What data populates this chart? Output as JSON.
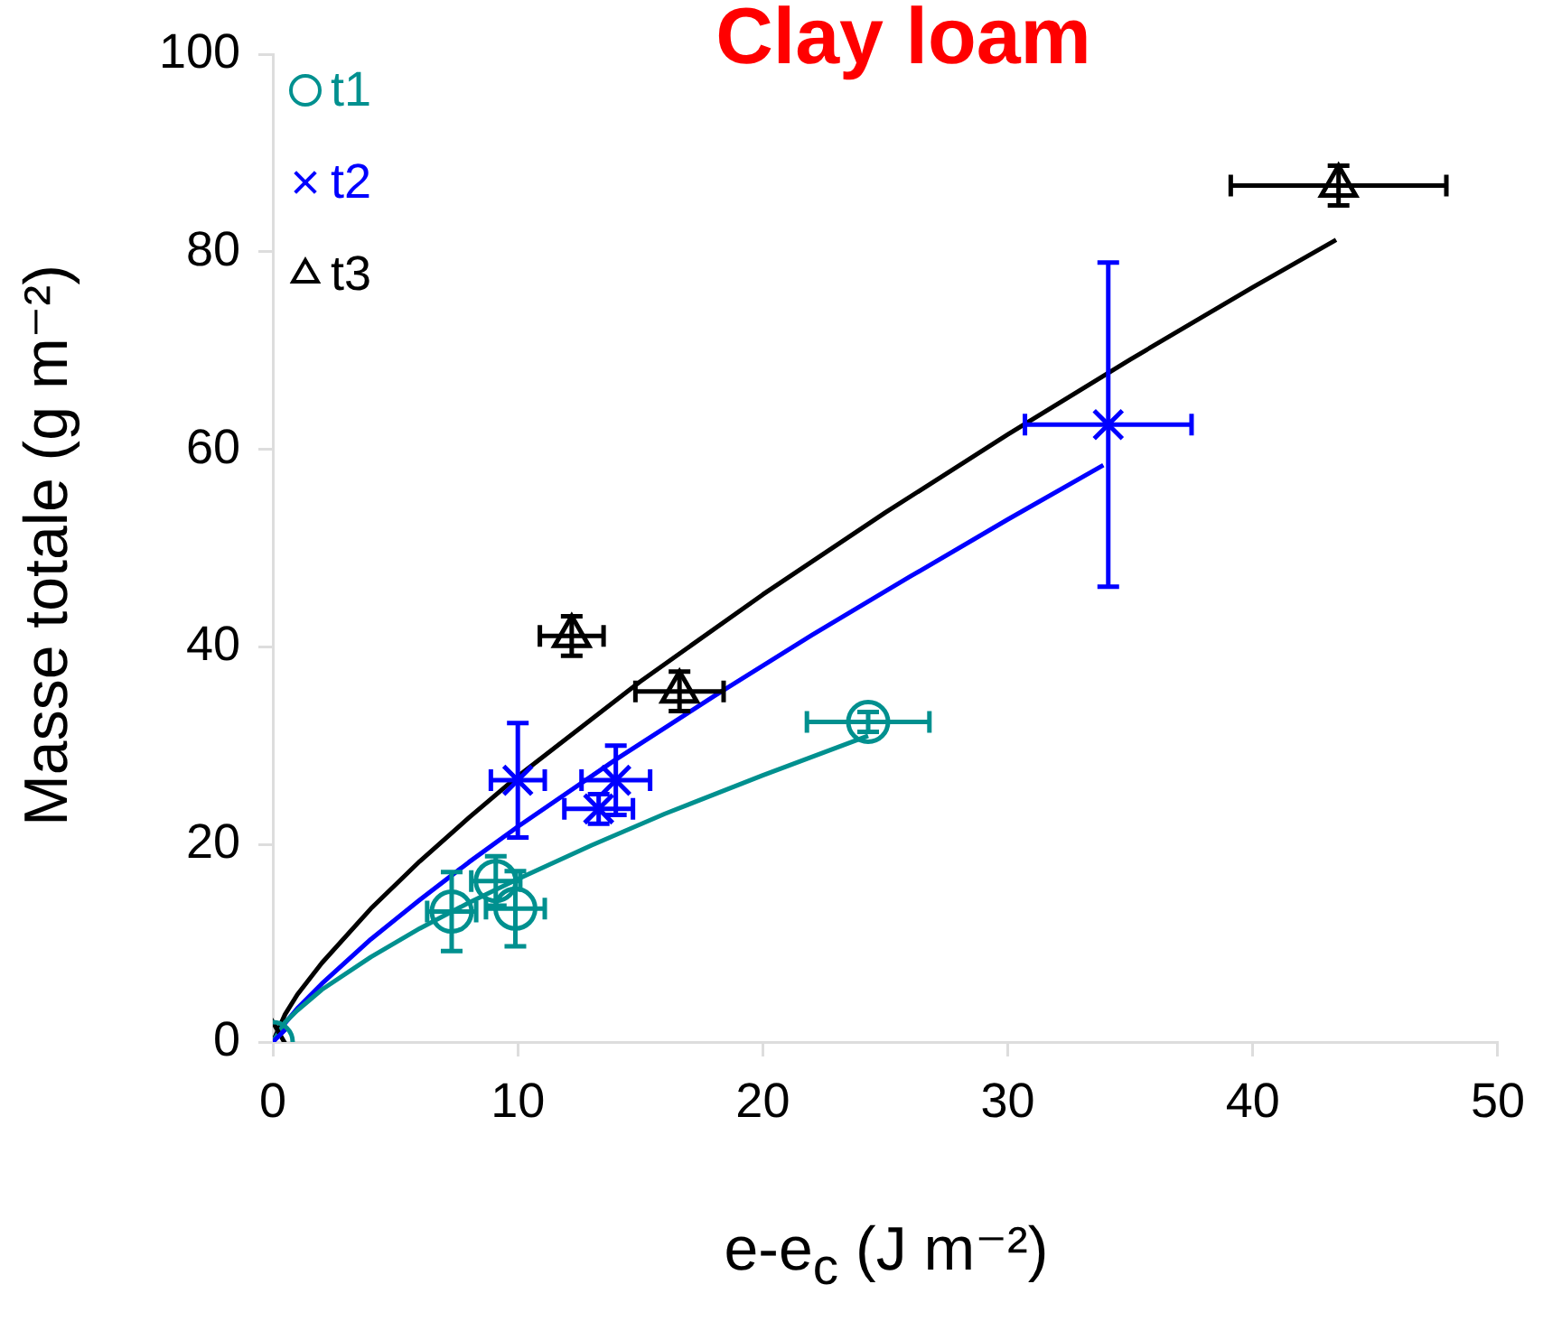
{
  "chart_data": {
    "type": "scatter",
    "title": "Clay loam",
    "xlabel": "e-e$_{c}$ (J m⁻²)",
    "ylabel": "Masse totale (g m⁻²)",
    "xlim": [
      0,
      50
    ],
    "xticks": [
      0,
      10,
      20,
      30,
      40,
      50
    ],
    "ylim": [
      0,
      100
    ],
    "yticks": [
      0,
      20,
      40,
      60,
      80,
      100
    ],
    "grid": false,
    "legend": "top left",
    "series": [
      {
        "name": "t1",
        "type": "scatter",
        "marker": "circle",
        "color": "#00908f",
        "x": [
          0,
          7.3,
          9.1,
          9.9,
          24.3
        ],
        "values": [
          0,
          13.2,
          16.3,
          13.5,
          32.4
        ],
        "errors": [
          null,
          4,
          2.5,
          3.8,
          1
        ],
        "xerrors": [
          null,
          1,
          1,
          1.2,
          2.5
        ]
      },
      {
        "name": "t2",
        "type": "scatter",
        "marker": "cross",
        "color": "#0000ff",
        "x": [
          0,
          10,
          13.3,
          14,
          34.1
        ],
        "values": [
          0,
          26.5,
          23.6,
          26.5,
          62.5
        ],
        "errors": [
          null,
          5.8,
          1.5,
          3.5,
          16.4
        ],
        "xerrors": [
          null,
          1.1,
          1.4,
          1.4,
          3.4
        ]
      },
      {
        "name": "t3",
        "type": "scatter",
        "marker": "triangle",
        "color": "#000000",
        "x": [
          0,
          12.2,
          16.6,
          43.5
        ],
        "values": [
          0,
          41.1,
          35.5,
          86.7
        ],
        "errors": [
          null,
          2,
          2,
          2
        ],
        "xerrors": [
          null,
          1.3,
          1.8,
          4.4
        ]
      },
      {
        "type": "line",
        "marker": "none",
        "color": "#00908f",
        "x": [
          0,
          0.5,
          1,
          2,
          4,
          6,
          8,
          10,
          13,
          16,
          20,
          24.3
        ],
        "values": [
          0,
          2,
          3.2,
          5.3,
          8.6,
          11.5,
          14.1,
          16.5,
          19.9,
          23.1,
          27,
          31
        ]
      },
      {
        "type": "line",
        "marker": "none",
        "color": "#0000ff",
        "x": [
          0,
          0.5,
          1,
          2,
          4,
          6,
          8,
          10,
          14,
          18,
          22,
          26,
          30,
          33.9
        ],
        "values": [
          0,
          1.9,
          3.4,
          5.9,
          10.4,
          14.4,
          18.2,
          21.8,
          28.6,
          35,
          41.2,
          47.1,
          52.9,
          58.4
        ]
      },
      {
        "type": "line",
        "marker": "none",
        "color": "#000000",
        "x": [
          0,
          0.5,
          1,
          2,
          4,
          6,
          8,
          10,
          15,
          20,
          25,
          30,
          35,
          40,
          43.4
        ],
        "values": [
          0,
          2.8,
          4.8,
          8,
          13.5,
          18.3,
          22.7,
          26.9,
          36.5,
          45.3,
          53.6,
          61.5,
          69.1,
          76.4,
          81.2
        ]
      }
    ]
  }
}
